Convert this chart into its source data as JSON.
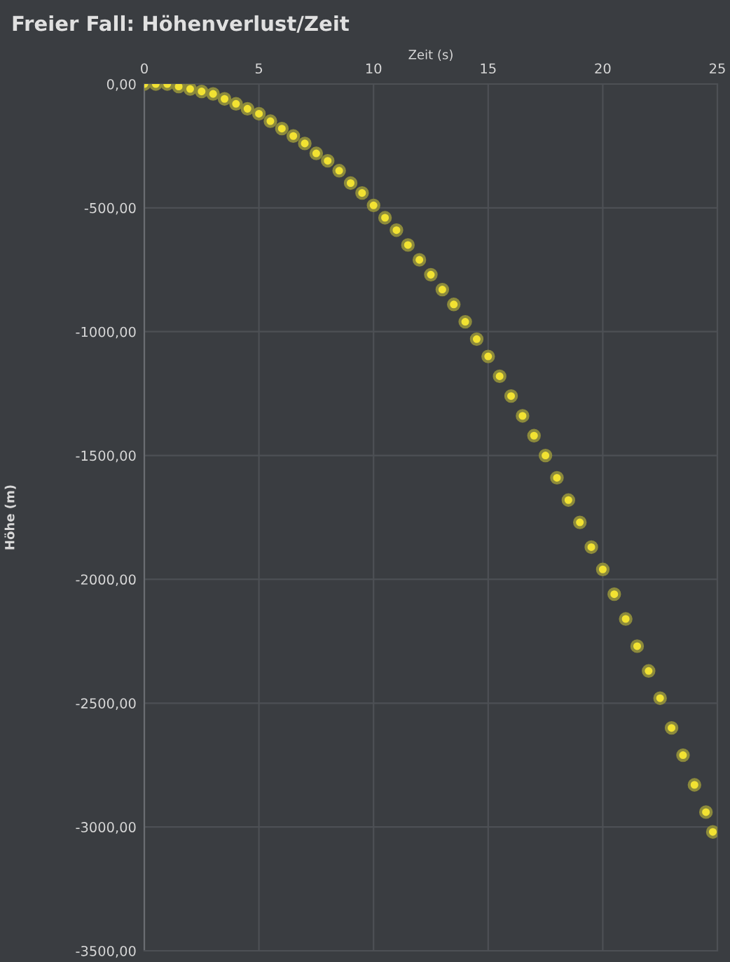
{
  "chart_data": {
    "type": "scatter",
    "title": "Freier Fall: Höhenverlust/Zeit",
    "xlabel": "Zeit (s)",
    "ylabel": "Höhe (m)",
    "x": [
      0,
      0.5,
      1,
      1.5,
      2,
      2.5,
      3,
      3.5,
      4,
      4.5,
      5,
      5.5,
      6,
      6.5,
      7,
      7.5,
      8,
      8.5,
      9,
      9.5,
      10,
      10.5,
      11,
      11.5,
      12,
      12.5,
      13,
      13.5,
      14,
      14.5,
      15,
      15.5,
      16,
      16.5,
      17,
      17.5,
      18,
      18.5,
      19,
      19.5,
      20,
      20.5,
      21,
      21.5,
      22,
      22.5,
      23,
      23.5,
      24,
      24.5,
      24.8
    ],
    "series": [
      {
        "color": "#f2e232",
        "values": [
          0,
          0,
          0,
          -10,
          -20,
          -30,
          -40,
          -60,
          -80,
          -100,
          -120,
          -150,
          -180,
          -210,
          -240,
          -280,
          -310,
          -350,
          -400,
          -440,
          -490,
          -540,
          -590,
          -650,
          -710,
          -770,
          -830,
          -890,
          -960,
          -1030,
          -1100,
          -1180,
          -1260,
          -1340,
          -1420,
          -1500,
          -1590,
          -1680,
          -1770,
          -1870,
          -1960,
          -2060,
          -2160,
          -2270,
          -2370,
          -2480,
          -2600,
          -2710,
          -2830,
          -2940,
          -3020
        ]
      }
    ],
    "xlim": [
      0,
      25
    ],
    "xticks": [
      0,
      5,
      10,
      15,
      20,
      25
    ],
    "ylim": [
      -3500,
      0
    ],
    "yticks": [
      {
        "value": 0,
        "label": "0,00"
      },
      {
        "value": -500,
        "label": "-500,00"
      },
      {
        "value": -1000,
        "label": "-1000,00"
      },
      {
        "value": -1500,
        "label": "-1500,00"
      },
      {
        "value": -2000,
        "label": "-2000,00"
      },
      {
        "value": -2500,
        "label": "-2500,00"
      },
      {
        "value": -3000,
        "label": "-3000,00"
      },
      {
        "value": -3500,
        "label": "-3500,00"
      }
    ],
    "grid": true,
    "marker": "circle"
  }
}
